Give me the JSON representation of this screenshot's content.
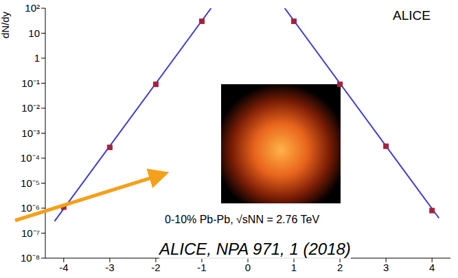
{
  "chart_data": {
    "type": "scatter",
    "y_label": "dN/dy",
    "annotations": [
      "ALICE",
      "0-10% Pb-Pb, √sNN = 2.76 TeV",
      "ALICE,  NPA 971, 1 (2018)"
    ],
    "log": "y",
    "grid": false,
    "xlim": [
      -4.4,
      4.4
    ],
    "xticks": [
      -4,
      -3,
      -2,
      -1,
      0,
      1,
      2,
      3,
      4
    ],
    "ylim": [
      1e-08,
      100
    ],
    "yticks": [
      {
        "value": 1e-08,
        "label": "10⁻⁸"
      },
      {
        "value": 1e-07,
        "label": "10⁻⁷"
      },
      {
        "value": 1e-06,
        "label": "10⁻⁶"
      },
      {
        "value": 1e-05,
        "label": "10⁻⁵"
      },
      {
        "value": 0.0001,
        "label": "10⁻⁴"
      },
      {
        "value": 0.001,
        "label": "10⁻³"
      },
      {
        "value": 0.01,
        "label": "10⁻²"
      },
      {
        "value": 0.1,
        "label": "10⁻¹"
      },
      1,
      10,
      {
        "value": 100,
        "label": "10²"
      }
    ],
    "series": [
      {
        "type": "scatter",
        "marker": "square",
        "color": "#a3233f",
        "x": [
          -4,
          -3,
          -2,
          -1,
          1,
          2,
          3,
          4
        ],
        "values": [
          1.1e-06,
          0.00027,
          0.09,
          30,
          30,
          0.09,
          0.0003,
          8e-07
        ]
      },
      {
        "type": "line",
        "color": "#3a3ad6",
        "x": [
          -4.2,
          -0.8
        ],
        "values": [
          3e-07,
          100
        ]
      },
      {
        "type": "line",
        "color": "#3a3ad6",
        "x": [
          0.8,
          4.15
        ],
        "values": [
          100,
          4e-07
        ]
      }
    ]
  }
}
